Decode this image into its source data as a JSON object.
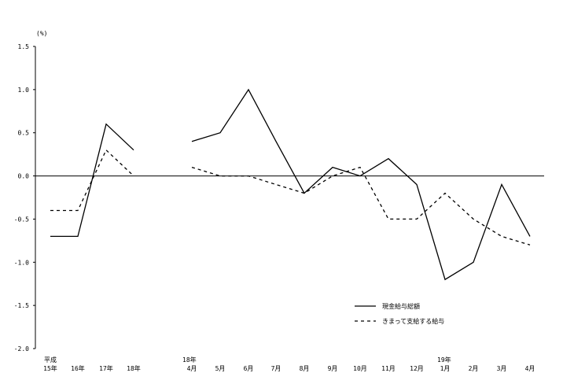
{
  "chart_data": {
    "type": "line",
    "unit_label": "(%)",
    "ylim": [
      -2.0,
      1.5
    ],
    "y_ticks": [
      "1.5",
      "1.0",
      "0.5",
      "0.0",
      "-0.5",
      "-1.0",
      "-1.5",
      "-2.0"
    ],
    "x_groups": [
      {
        "era": "平成",
        "labels": [
          "15年",
          "16年",
          "17年",
          "18年"
        ]
      },
      {
        "era": "18年",
        "labels": [
          "4月",
          "5月",
          "6月",
          "7月",
          "8月",
          "9月",
          "10月",
          "11月",
          "12月"
        ]
      },
      {
        "era": "19年",
        "labels": [
          "1月",
          "2月",
          "3月",
          "4月"
        ]
      }
    ],
    "categories": [
      "15年",
      "16年",
      "17年",
      "18年",
      "4月",
      "5月",
      "6月",
      "7月",
      "8月",
      "9月",
      "10月",
      "11月",
      "12月",
      "1月",
      "2月",
      "3月",
      "4月"
    ],
    "series": [
      {
        "name": "現金給与総額",
        "style": "solid",
        "values": [
          [
            -0.7,
            -0.7,
            0.6,
            0.3
          ],
          [
            0.4,
            0.5,
            1.0,
            0.4,
            -0.2,
            0.1,
            0.0,
            0.2,
            -0.1,
            -1.2,
            -1.0,
            -0.1,
            -0.7
          ]
        ]
      },
      {
        "name": "きまって支給する給与",
        "style": "dashed",
        "values": [
          [
            -0.4,
            -0.4,
            0.3,
            0.0
          ],
          [
            0.1,
            0.0,
            0.0,
            -0.1,
            -0.2,
            0.0,
            0.1,
            -0.5,
            -0.5,
            -0.2,
            -0.5,
            -0.7,
            -0.8
          ]
        ]
      }
    ]
  }
}
